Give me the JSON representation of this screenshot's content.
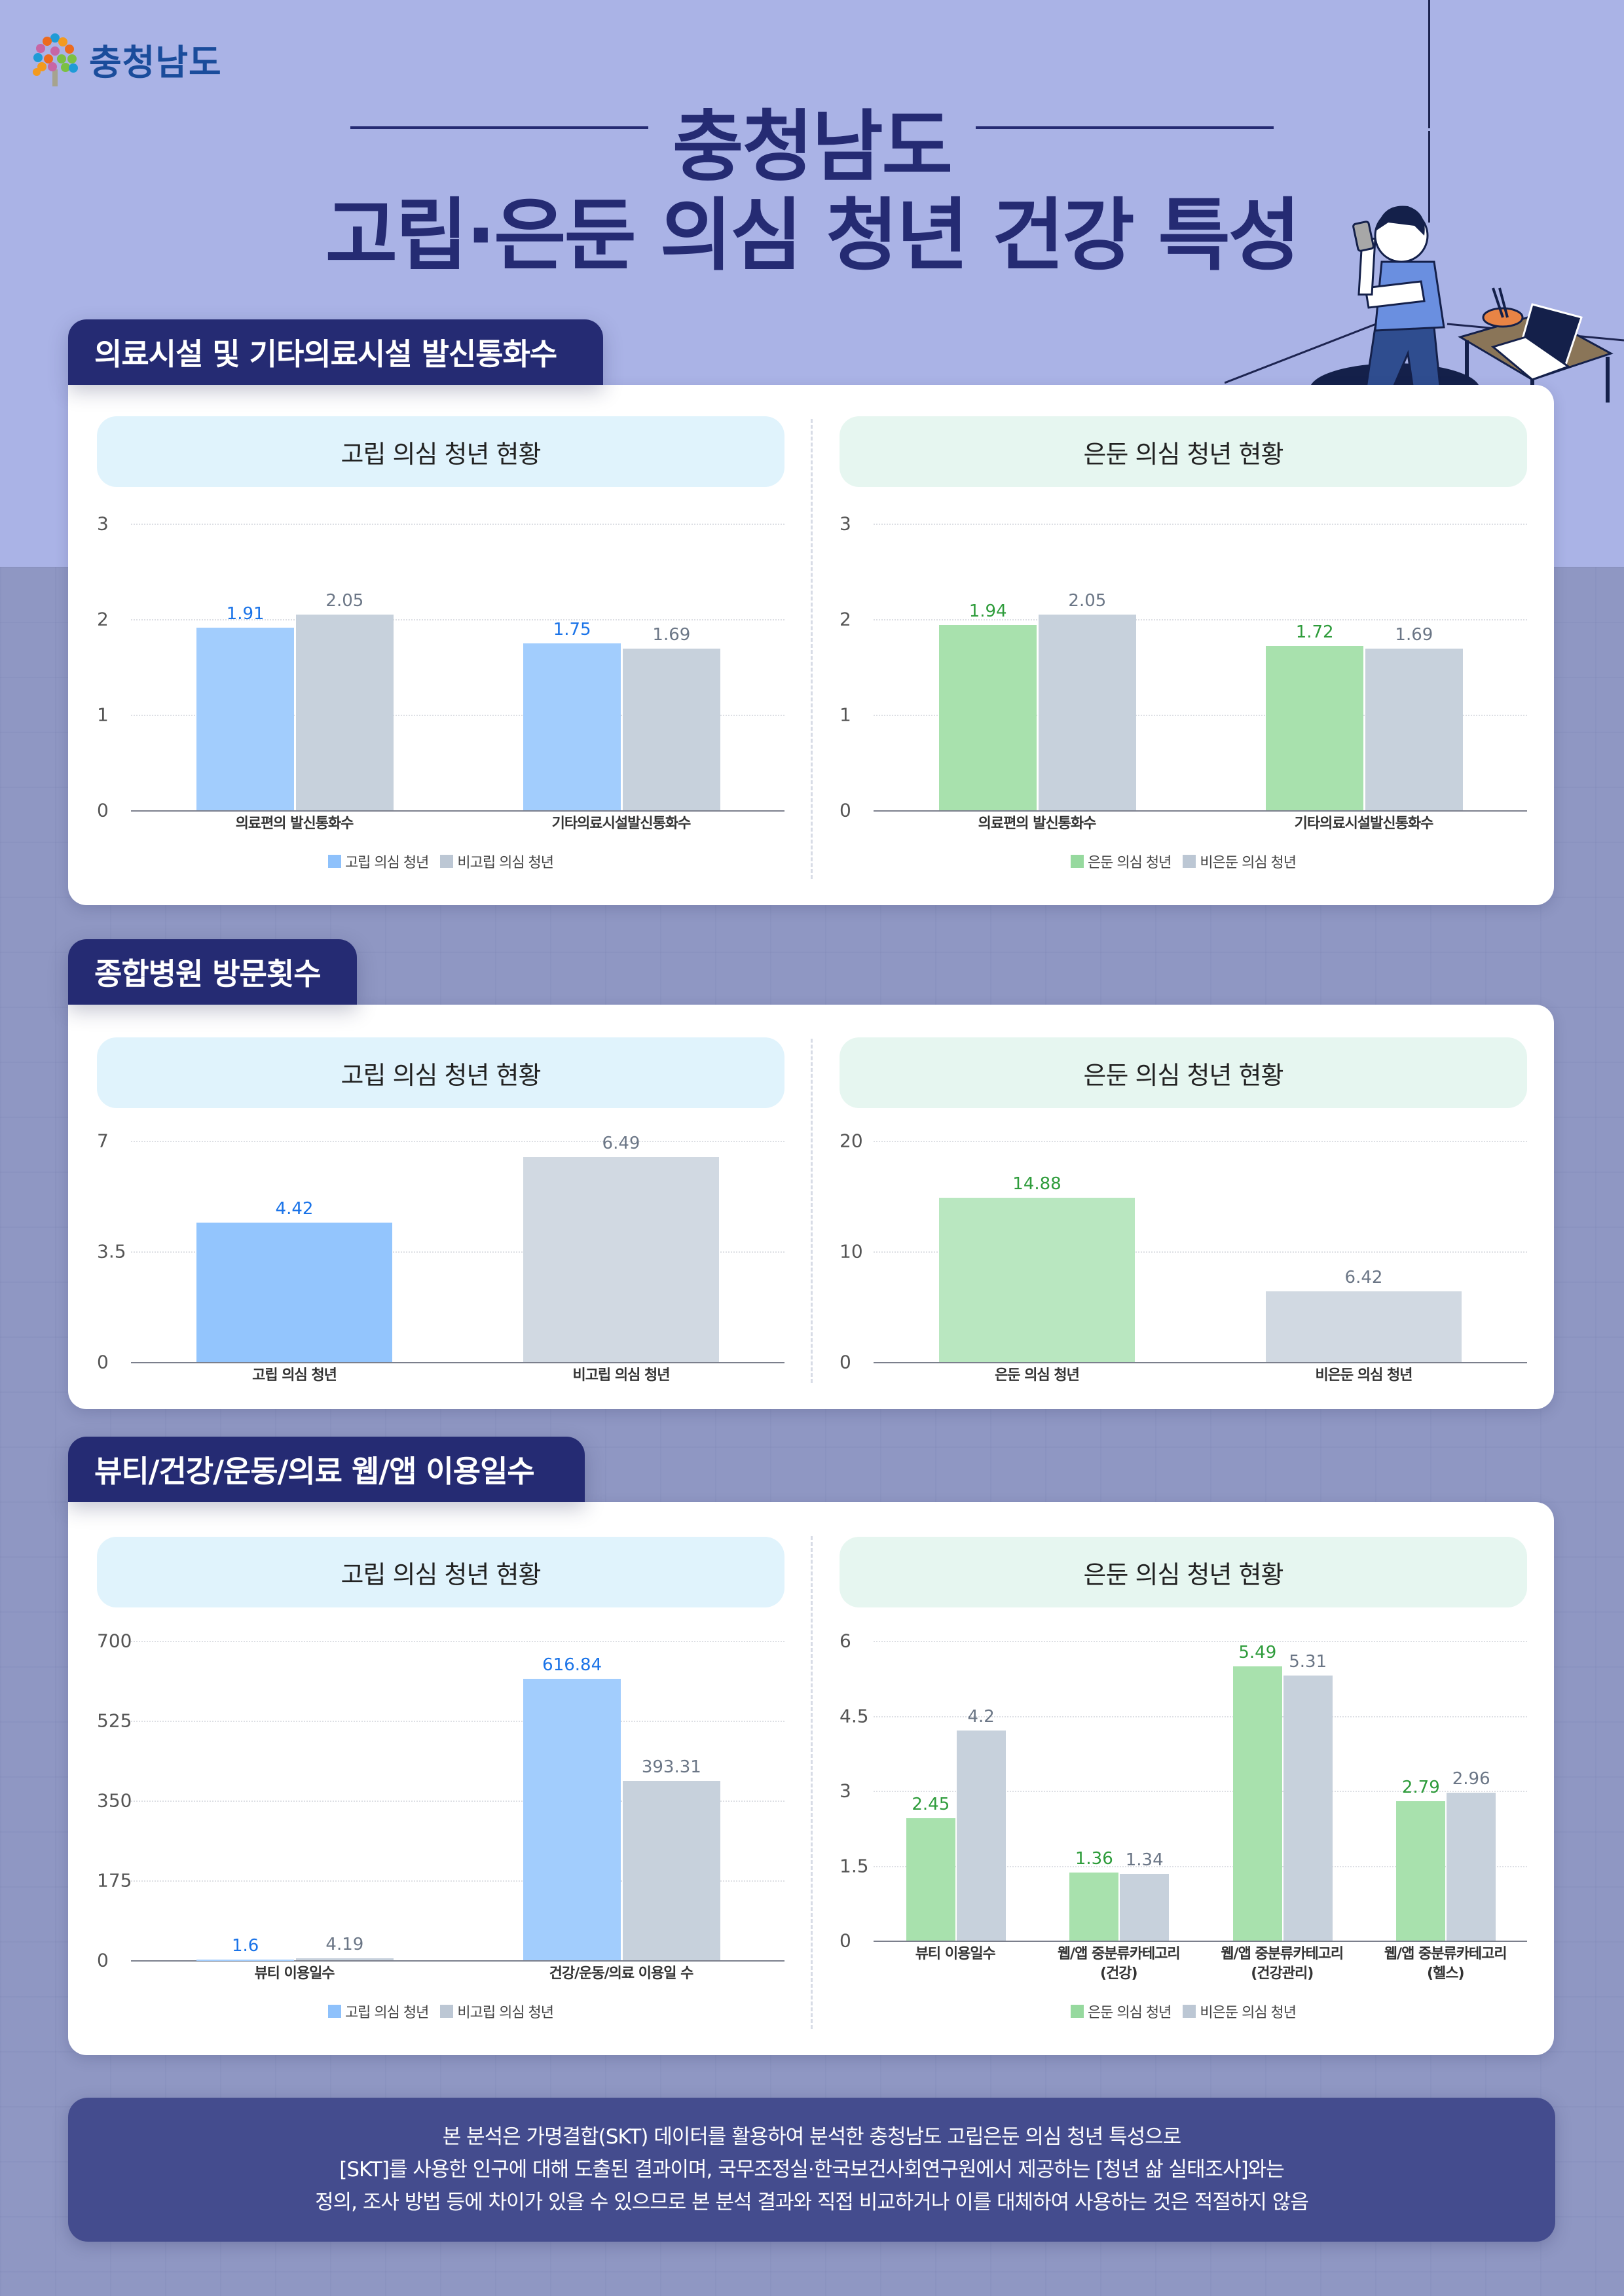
{
  "brand": {
    "logo_text": "충청남도",
    "logo_icon": "tree-of-droplets-icon",
    "colors": {
      "navy": "#252b73",
      "blue_text": "#1a4c9b",
      "bg_top": "#aab3e6",
      "bg_bottom": "#8f97c3"
    }
  },
  "header": {
    "title_line1": "충청남도",
    "title_line2": "고립·은둔 의심 청년 건강 특성"
  },
  "illustration": {
    "icon": "isolated-youth-with-phone-and-laptop-icon"
  },
  "sections": [
    {
      "title": "의료시설 및 기타의료시설 발신통화수",
      "panels": [
        {
          "header": "고립 의심 청년 현황",
          "legend": [
            "고립 의심 청년",
            "비고립 의심 청년"
          ]
        },
        {
          "header": "은둔 의심 청년 현황",
          "legend": [
            "은둔 의심 청년",
            "비은둔 의심 청년"
          ]
        }
      ]
    },
    {
      "title": "종합병원 방문횟수",
      "panels": [
        {
          "header": "고립 의심 청년 현황"
        },
        {
          "header": "은둔 의심 청년 현황"
        }
      ]
    },
    {
      "title": "뷰티/건강/운동/의료 웹/앱 이용일수",
      "panels": [
        {
          "header": "고립 의심 청년 현황",
          "legend": [
            "고립 의심 청년",
            "비고립 의심 청년"
          ]
        },
        {
          "header": "은둔 의심 청년 현황",
          "legend": [
            "은둔 의심 청년",
            "비은둔 의심 청년"
          ]
        }
      ]
    }
  ],
  "footer": {
    "lines": [
      "본 분석은 가명결합(SKT) 데이터를 활용하여 분석한 충청남도 고립은둔 의심 청년 특성으로",
      "[SKT]를 사용한 인구에 대해 도출된 결과이며, 국무조정실·한국보건사회연구원에서 제공하는 [청년 삶 실태조사]와는",
      "정의, 조사 방법 등에 차이가 있을 수 있으므로 본 분석 결과와 직접 비교하거나 이를 대체하여 사용하는 것은 적절하지 않음"
    ]
  },
  "series_colors": {
    "isolated": "#a2cdfd",
    "isolated_label": "#1a73e8",
    "reclusive": "#a8e1ad",
    "reclusive_label": "#2e9c3b",
    "comparison": "#c7d1dc",
    "comparison_label": "#6b7686"
  },
  "chart_data": [
    {
      "id": "s1-isolated",
      "type": "bar",
      "title": "고립 의심 청년 현황",
      "section": "의료시설 및 기타의료시설 발신통화수",
      "categories": [
        "의료편의 발신통화수",
        "기타의료시설발신통화수"
      ],
      "series": [
        {
          "name": "고립 의심 청년",
          "values": [
            1.91,
            1.75
          ],
          "color": "#a2cdfd",
          "label_color": "#1a73e8"
        },
        {
          "name": "비고립 의심 청년",
          "values": [
            2.05,
            1.69
          ],
          "color": "#c7d1dc",
          "label_color": "#6b7686"
        }
      ],
      "ylim": [
        0,
        3
      ],
      "yticks": [
        0,
        1,
        2,
        3
      ],
      "grid": true,
      "legend_position": "bottom",
      "xlabel": "",
      "ylabel": ""
    },
    {
      "id": "s1-reclusive",
      "type": "bar",
      "title": "은둔 의심 청년 현황",
      "section": "의료시설 및 기타의료시설 발신통화수",
      "categories": [
        "의료편의 발신통화수",
        "기타의료시설발신통화수"
      ],
      "series": [
        {
          "name": "은둔 의심 청년",
          "values": [
            1.94,
            1.72
          ],
          "color": "#a8e1ad",
          "label_color": "#2e9c3b"
        },
        {
          "name": "비은둔 의심 청년",
          "values": [
            2.05,
            1.69
          ],
          "color": "#c7d1dc",
          "label_color": "#6b7686"
        }
      ],
      "ylim": [
        0,
        3
      ],
      "yticks": [
        0,
        1,
        2,
        3
      ],
      "grid": true,
      "legend_position": "bottom",
      "xlabel": "",
      "ylabel": ""
    },
    {
      "id": "s2-isolated",
      "type": "bar",
      "title": "고립 의심 청년 현황",
      "section": "종합병원 방문횟수",
      "categories": [
        "고립 의심 청년",
        "비고립 의심 청년"
      ],
      "values": [
        4.42,
        6.49
      ],
      "colors": [
        "#93c5fd",
        "#d1d9e2"
      ],
      "label_colors": [
        "#1a73e8",
        "#6b7686"
      ],
      "ylim": [
        0,
        7
      ],
      "yticks": [
        0,
        3.5,
        7
      ],
      "grid": true,
      "xlabel": "",
      "ylabel": ""
    },
    {
      "id": "s2-reclusive",
      "type": "bar",
      "title": "은둔 의심 청년 현황",
      "section": "종합병원 방문횟수",
      "categories": [
        "은둔 의심 청년",
        "비은둔 의심 청년"
      ],
      "values": [
        14.88,
        6.42
      ],
      "colors": [
        "#b9e7c0",
        "#d1d9e2"
      ],
      "label_colors": [
        "#2e9c3b",
        "#6b7686"
      ],
      "ylim": [
        0,
        20
      ],
      "yticks": [
        0,
        10,
        20
      ],
      "grid": true,
      "xlabel": "",
      "ylabel": ""
    },
    {
      "id": "s3-isolated",
      "type": "bar",
      "title": "고립 의심 청년 현황",
      "section": "뷰티/건강/운동/의료 웹/앱 이용일수",
      "categories": [
        "뷰티 이용일수",
        "건강/운동/의료 이용일 수"
      ],
      "series": [
        {
          "name": "고립 의심 청년",
          "values": [
            1.6,
            616.84
          ],
          "color": "#a2cdfd",
          "label_color": "#1a73e8"
        },
        {
          "name": "비고립 의심 청년",
          "values": [
            4.19,
            393.31
          ],
          "color": "#c7d1dc",
          "label_color": "#6b7686"
        }
      ],
      "ylim": [
        0,
        700
      ],
      "yticks": [
        0,
        175,
        350,
        525,
        700
      ],
      "grid": true,
      "legend_position": "bottom",
      "xlabel": "",
      "ylabel": ""
    },
    {
      "id": "s3-reclusive",
      "type": "bar",
      "title": "은둔 의심 청년 현황",
      "section": "뷰티/건강/운동/의료 웹/앱 이용일수",
      "categories": [
        "뷰티 이용일수",
        "웹/앱 중분류카테고리\n(건강)",
        "웹/앱 중분류카테고리\n(건강관리)",
        "웹/앱 중분류카테고리\n(헬스)"
      ],
      "series": [
        {
          "name": "은둔 의심 청년",
          "values": [
            2.45,
            1.36,
            5.49,
            2.79
          ],
          "color": "#a8e1ad",
          "label_color": "#2e9c3b"
        },
        {
          "name": "비은둔 의심 청년",
          "values": [
            4.2,
            1.34,
            5.31,
            2.96
          ],
          "color": "#c7d1dc",
          "label_color": "#6b7686"
        }
      ],
      "ylim": [
        0,
        6
      ],
      "yticks": [
        0,
        1.5,
        3,
        4.5,
        6
      ],
      "grid": true,
      "legend_position": "bottom",
      "xlabel": "",
      "ylabel": ""
    }
  ]
}
